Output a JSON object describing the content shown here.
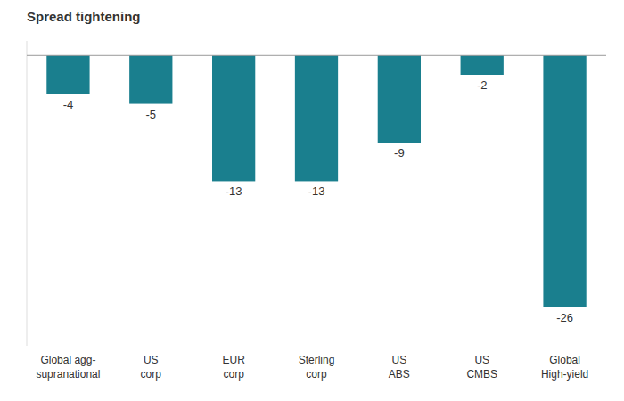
{
  "chart_data": {
    "type": "bar",
    "subtitle": "Spread tightening",
    "categories": [
      "Global agg-\nsupranational",
      "US\ncorp",
      "EUR\ncorp",
      "Sterling\ncorp",
      "US\nABS",
      "US\nCMBS",
      "Global\nHigh-yield"
    ],
    "values": [
      -4,
      -5,
      -13,
      -13,
      -9,
      -2,
      -26
    ],
    "color": "#1a7f8e",
    "ylim": [
      -30,
      1.5
    ],
    "data_labels": true,
    "tick_labels": "x",
    "grid": false
  }
}
